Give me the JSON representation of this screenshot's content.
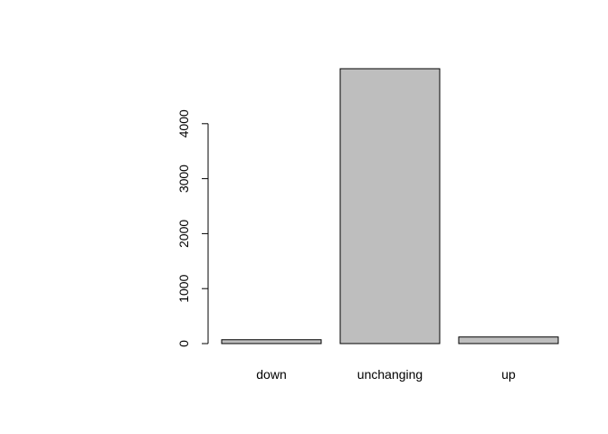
{
  "chart_data": {
    "type": "bar",
    "categories": [
      "down",
      "unchanging",
      "up"
    ],
    "values": [
      70,
      5000,
      120
    ],
    "ylim": [
      0,
      5000
    ],
    "yticks": [
      0,
      1000,
      2000,
      3000,
      4000
    ],
    "bar_color": "#bebebe",
    "grid": false,
    "legend": "none"
  }
}
